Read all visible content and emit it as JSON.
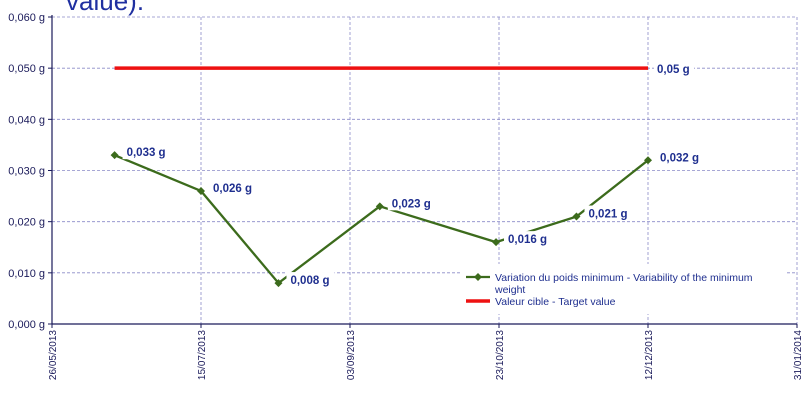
{
  "title_fragment": "value).",
  "chart_data": {
    "type": "line",
    "x_axis": {
      "type": "date",
      "min": "2013-05-26",
      "max": "2014-01-31",
      "tick_labels": [
        "26/05/2013",
        "15/07/2013",
        "03/09/2013",
        "23/10/2013",
        "12/12/2013",
        "31/01/2014"
      ]
    },
    "y_axis": {
      "min": 0,
      "max": 0.06,
      "tick_labels": [
        "0,000 g",
        "0,010 g",
        "0,020 g",
        "0,030 g",
        "0,040 g",
        "0,050 g",
        "0,060 g"
      ]
    },
    "grid": true,
    "legend_position": "bottom-right",
    "series": [
      {
        "name": "Variation du poids minimum - Variability of the minimum weight",
        "color": "#3c6b1c",
        "marker": "diamond",
        "points": [
          {
            "x": "2013-06-16",
            "y": 0.033,
            "label": "0,033 g"
          },
          {
            "x": "2013-07-15",
            "y": 0.026,
            "label": "0,026 g"
          },
          {
            "x": "2013-08-10",
            "y": 0.008,
            "label": "0,008 g"
          },
          {
            "x": "2013-09-13",
            "y": 0.023,
            "label": "0,023 g"
          },
          {
            "x": "2013-10-22",
            "y": 0.016,
            "label": "0,016 g"
          },
          {
            "x": "2013-11-18",
            "y": 0.021,
            "label": "0,021 g"
          },
          {
            "x": "2013-12-12",
            "y": 0.032,
            "label": "0,032 g"
          }
        ]
      },
      {
        "name": "Valeur cible  - Target value",
        "color": "#ee1111",
        "marker": "none",
        "points": [
          {
            "x": "2013-06-16",
            "y": 0.05
          },
          {
            "x": "2013-12-12",
            "y": 0.05,
            "label": "0,05 g"
          }
        ]
      }
    ]
  }
}
